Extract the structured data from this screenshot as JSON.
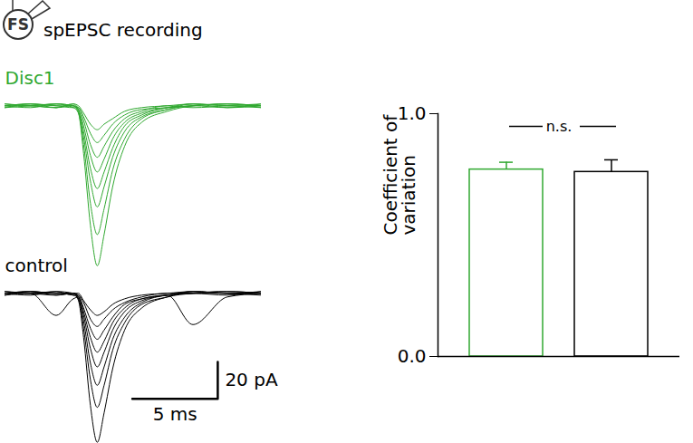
{
  "diagram": {
    "cell_label": "FS",
    "title": "spEPSC recording"
  },
  "chart_data": [
    {
      "type": "line",
      "tick_labels": false,
      "x": [
        0,
        1.5,
        3,
        4,
        4.3,
        4.6,
        5,
        5.4,
        5.8,
        6.3,
        7,
        8,
        9.5,
        11,
        13,
        15
      ],
      "series": [
        {
          "name": "Disc1",
          "color": "#30a830",
          "traces": [
            [
              0,
              1,
              -1,
              0,
              -4,
              -26,
              -65,
              -87,
              -70,
              -44,
              -22,
              -9,
              -3,
              0,
              1,
              0
            ],
            [
              1,
              0,
              1,
              -1,
              -4,
              -21,
              -53,
              -70,
              -56,
              -35,
              -18,
              -7,
              -2,
              1,
              0,
              -1
            ],
            [
              -1,
              1,
              0,
              0,
              -3,
              -17,
              -41,
              -55,
              -44,
              -28,
              -14,
              -6,
              -2,
              0,
              -1,
              1
            ],
            [
              0,
              -1,
              1,
              0,
              -2,
              -14,
              -34,
              -45,
              -36,
              -23,
              -11,
              -5,
              -1,
              1,
              0,
              0
            ],
            [
              1,
              0,
              -1,
              1,
              -2,
              -11,
              -27,
              -36,
              -29,
              -18,
              -9,
              -4,
              -1,
              0,
              1,
              -1
            ],
            [
              0,
              1,
              0,
              -1,
              -1,
              -8,
              -21,
              -28,
              -22,
              -14,
              -7,
              -3,
              0,
              -1,
              0,
              1
            ],
            [
              -1,
              0,
              1,
              0,
              -1,
              -6,
              -15,
              -20,
              -16,
              -10,
              -5,
              -2,
              -1,
              0,
              1,
              0
            ],
            [
              0,
              0,
              -1,
              1,
              0,
              -4,
              -10,
              -13,
              -10,
              -7,
              -3,
              -1,
              0,
              1,
              -1,
              0
            ]
          ]
        },
        {
          "name": "control",
          "color": "#000000",
          "traces": [
            [
              0,
              1,
              -1,
              0,
              -4,
              -24,
              -61,
              -81,
              -65,
              -41,
              -20,
              -8,
              -2,
              0,
              1,
              0
            ],
            [
              1,
              0,
              0,
              -1,
              -3,
              -19,
              -47,
              -62,
              -50,
              -31,
              -16,
              -6,
              -2,
              1,
              0,
              -1
            ],
            [
              0,
              -1,
              1,
              0,
              -3,
              -15,
              -38,
              -50,
              -40,
              -25,
              -13,
              -5,
              -1,
              0,
              1,
              0
            ],
            [
              -1,
              0,
              -12,
              -3,
              -2,
              -12,
              -30,
              -40,
              -32,
              -20,
              -10,
              -4,
              -1,
              0,
              0,
              1
            ],
            [
              0,
              1,
              0,
              0,
              -2,
              -10,
              -24,
              -32,
              -26,
              -16,
              -8,
              -3,
              -1,
              1,
              0,
              0
            ],
            [
              1,
              0,
              -1,
              0,
              -1,
              -8,
              -19,
              -25,
              -20,
              -13,
              -6,
              -3,
              -1,
              -17,
              -2,
              0
            ],
            [
              0,
              0,
              1,
              -1,
              -1,
              -5,
              -14,
              -18,
              -14,
              -9,
              -5,
              -2,
              0,
              0,
              -1,
              1
            ],
            [
              -1,
              1,
              0,
              0,
              0,
              -4,
              -9,
              -12,
              -10,
              -6,
              -3,
              -1,
              0,
              1,
              0,
              0
            ]
          ]
        }
      ],
      "scale_bar": {
        "x": 5,
        "x_label": "5 ms",
        "y": 20,
        "y_label": "20 pA"
      }
    },
    {
      "type": "bar",
      "categories": [
        null,
        null
      ],
      "values": [
        0.77,
        0.76
      ],
      "errors": [
        0.03,
        0.05
      ],
      "colors": [
        "#30a830",
        "#000000"
      ],
      "y_label": "Coefficient of variation",
      "ylim": [
        0,
        1
      ],
      "yticks": [
        0,
        1
      ],
      "annotations": [
        {
          "text": "n.s.",
          "between": [
            0,
            1
          ]
        }
      ]
    }
  ]
}
